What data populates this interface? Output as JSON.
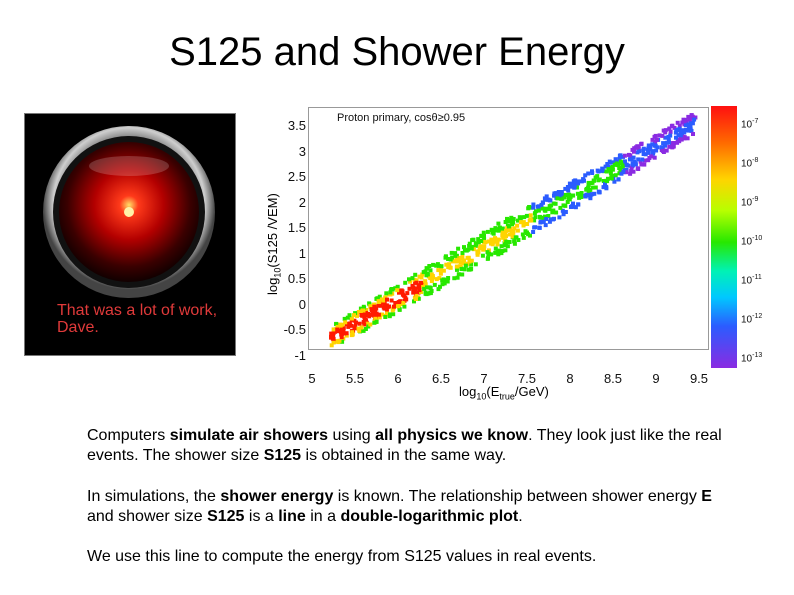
{
  "slide": {
    "title": "S125 and Shower Energy",
    "hal_caption": "That was a lot of work, Dave.",
    "paragraph1_parts": [
      "Computers ",
      "simulate air showers",
      " using ",
      "all physics we know",
      ". They look just like the real events. The shower size ",
      "S125",
      " is obtained in the same way."
    ],
    "paragraph2_parts": [
      "In simulations, the ",
      "shower energy",
      " is known. The relationship between shower energy ",
      "E",
      " and shower size ",
      "S125",
      " is a ",
      "line",
      " in a ",
      "double-logarithmic plot",
      "."
    ],
    "paragraph3": "We use this line to compute the energy from S125 values in real events."
  },
  "plot": {
    "annotation": "Proton primary, cosθ≥0.95",
    "y_axis_label": "log10(S125 /VEM)",
    "x_axis_label": "log10(Etrue /GeV)",
    "y_ticks": [
      "3.5",
      "3",
      "2.5",
      "2",
      "1.5",
      "1",
      "0.5",
      "0",
      "-0.5",
      "-1"
    ],
    "x_ticks": [
      "5",
      "5.5",
      "6",
      "6.5",
      "7",
      "7.5",
      "8",
      "8.5",
      "9",
      "9.5"
    ],
    "colorbar_labels": [
      "10-7",
      "10-8",
      "10-9",
      "10-10",
      "10-11",
      "10-12",
      "10-13"
    ],
    "colors": {
      "core": "#ff1a00",
      "mid": "#ffd400",
      "outer": "#27e800",
      "tail": "#2b5cff",
      "edge": "#8a2be2"
    }
  }
}
